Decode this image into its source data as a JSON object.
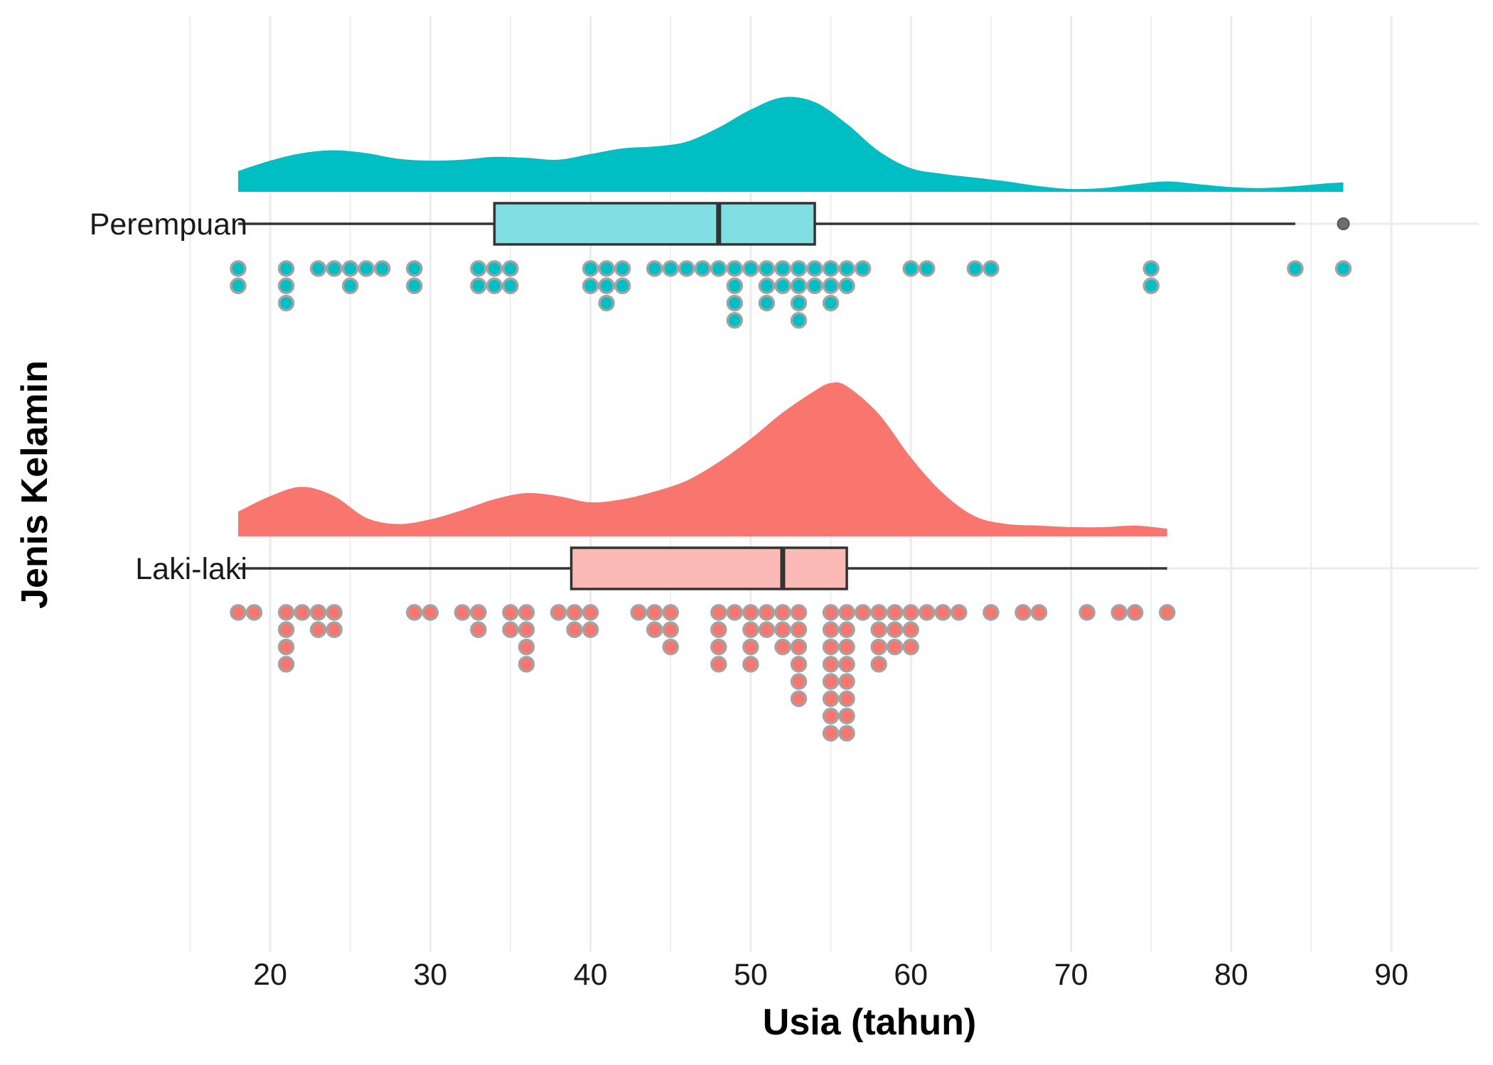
{
  "chart_data": {
    "type": "raincloud",
    "xlabel": "Usia (tahun)",
    "ylabel": "Jenis Kelamin",
    "xlim": [
      15,
      90
    ],
    "x_ticks": [
      20,
      30,
      40,
      50,
      60,
      70,
      80,
      90
    ],
    "grid": true,
    "legend": "none",
    "groups": [
      {
        "name": "Perempuan",
        "color": "#00BFC4",
        "box_fill": "#80DFE2",
        "boxplot": {
          "whisker_low": 18,
          "q1": 34,
          "median": 48,
          "q3": 54,
          "whisker_high": 84,
          "outliers": [
            87
          ]
        },
        "density": [
          [
            18,
            0.22
          ],
          [
            20,
            0.33
          ],
          [
            22,
            0.41
          ],
          [
            24,
            0.44
          ],
          [
            26,
            0.41
          ],
          [
            28,
            0.35
          ],
          [
            30,
            0.33
          ],
          [
            32,
            0.34
          ],
          [
            34,
            0.37
          ],
          [
            36,
            0.36
          ],
          [
            38,
            0.34
          ],
          [
            40,
            0.4
          ],
          [
            42,
            0.46
          ],
          [
            44,
            0.48
          ],
          [
            46,
            0.53
          ],
          [
            48,
            0.68
          ],
          [
            50,
            0.87
          ],
          [
            52,
            1.0
          ],
          [
            54,
            0.95
          ],
          [
            56,
            0.72
          ],
          [
            58,
            0.43
          ],
          [
            60,
            0.25
          ],
          [
            62,
            0.19
          ],
          [
            64,
            0.15
          ],
          [
            66,
            0.11
          ],
          [
            68,
            0.06
          ],
          [
            70,
            0.03
          ],
          [
            72,
            0.04
          ],
          [
            74,
            0.08
          ],
          [
            76,
            0.11
          ],
          [
            78,
            0.08
          ],
          [
            80,
            0.05
          ],
          [
            82,
            0.04
          ],
          [
            84,
            0.06
          ],
          [
            86,
            0.09
          ],
          [
            87,
            0.1
          ]
        ],
        "dots": [
          18,
          18,
          21,
          21,
          21,
          23,
          24,
          25,
          25,
          26,
          27,
          29,
          29,
          33,
          33,
          34,
          34,
          35,
          35,
          40,
          40,
          41,
          41,
          41,
          42,
          42,
          44,
          45,
          46,
          47,
          48,
          49,
          49,
          49,
          49,
          50,
          51,
          51,
          51,
          52,
          52,
          53,
          53,
          53,
          53,
          54,
          54,
          55,
          55,
          55,
          56,
          56,
          57,
          60,
          61,
          64,
          65,
          75,
          75,
          84,
          87
        ]
      },
      {
        "name": "Laki-laki",
        "color": "#F8766D",
        "box_fill": "#FBBAB5",
        "boxplot": {
          "whisker_low": 18,
          "q1": 38.8,
          "median": 52,
          "q3": 56,
          "whisker_high": 76,
          "outliers": []
        },
        "density": [
          [
            18,
            0.16
          ],
          [
            20,
            0.26
          ],
          [
            22,
            0.32
          ],
          [
            24,
            0.26
          ],
          [
            26,
            0.12
          ],
          [
            28,
            0.08
          ],
          [
            30,
            0.11
          ],
          [
            32,
            0.17
          ],
          [
            34,
            0.24
          ],
          [
            36,
            0.28
          ],
          [
            38,
            0.26
          ],
          [
            40,
            0.22
          ],
          [
            42,
            0.24
          ],
          [
            44,
            0.29
          ],
          [
            46,
            0.36
          ],
          [
            48,
            0.48
          ],
          [
            50,
            0.63
          ],
          [
            52,
            0.8
          ],
          [
            54,
            0.94
          ],
          [
            55,
            0.99
          ],
          [
            56,
            0.97
          ],
          [
            58,
            0.79
          ],
          [
            60,
            0.51
          ],
          [
            62,
            0.28
          ],
          [
            64,
            0.13
          ],
          [
            66,
            0.08
          ],
          [
            68,
            0.07
          ],
          [
            70,
            0.06
          ],
          [
            72,
            0.06
          ],
          [
            74,
            0.07
          ],
          [
            76,
            0.05
          ]
        ],
        "dots": [
          18,
          19,
          21,
          21,
          21,
          21,
          22,
          23,
          23,
          24,
          24,
          29,
          30,
          32,
          33,
          33,
          35,
          35,
          36,
          36,
          36,
          36,
          38,
          39,
          39,
          40,
          40,
          43,
          44,
          44,
          45,
          45,
          45,
          48,
          48,
          48,
          48,
          49,
          50,
          50,
          50,
          50,
          51,
          51,
          52,
          52,
          52,
          53,
          53,
          53,
          53,
          53,
          53,
          55,
          55,
          55,
          55,
          55,
          55,
          55,
          55,
          56,
          56,
          56,
          56,
          56,
          56,
          56,
          56,
          57,
          58,
          58,
          58,
          58,
          59,
          59,
          59,
          60,
          60,
          60,
          61,
          62,
          63,
          65,
          67,
          68,
          71,
          73,
          74,
          76
        ]
      }
    ]
  }
}
